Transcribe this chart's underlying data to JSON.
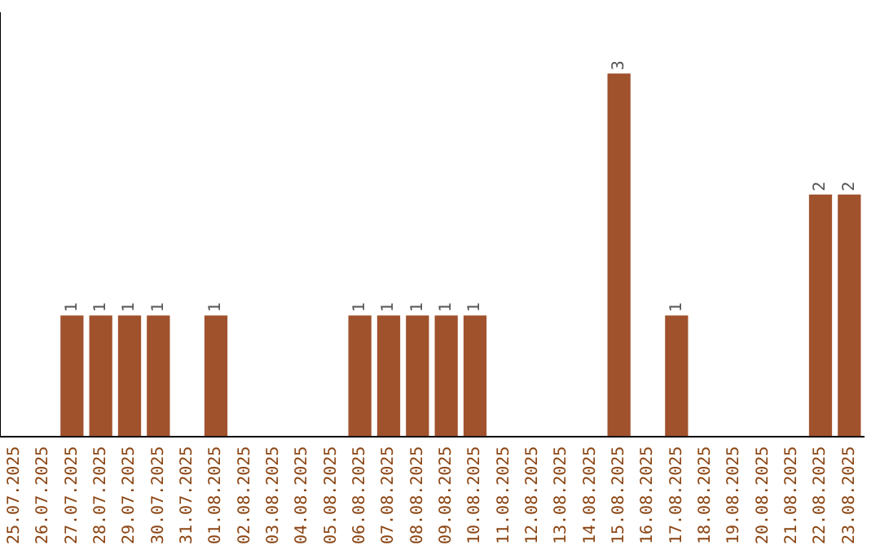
{
  "chart_data": {
    "type": "bar",
    "categories": [
      "25.07.2025",
      "26.07.2025",
      "27.07.2025",
      "28.07.2025",
      "29.07.2025",
      "30.07.2025",
      "31.07.2025",
      "01.08.2025",
      "02.08.2025",
      "03.08.2025",
      "04.08.2025",
      "05.08.2025",
      "06.08.2025",
      "07.08.2025",
      "08.08.2025",
      "09.08.2025",
      "10.08.2025",
      "11.08.2025",
      "12.08.2025",
      "13.08.2025",
      "14.08.2025",
      "15.08.2025",
      "16.08.2025",
      "17.08.2025",
      "18.08.2025",
      "19.08.2025",
      "20.08.2025",
      "21.08.2025",
      "22.08.2025",
      "23.08.2025"
    ],
    "values": [
      0,
      0,
      1,
      1,
      1,
      1,
      0,
      1,
      0,
      0,
      0,
      0,
      1,
      1,
      1,
      1,
      1,
      0,
      0,
      0,
      0,
      3,
      0,
      1,
      0,
      0,
      0,
      0,
      2,
      2
    ],
    "value_labels": [
      null,
      null,
      "1",
      "1",
      "1",
      "1",
      null,
      "1",
      null,
      null,
      null,
      null,
      "1",
      "1",
      "1",
      "1",
      "1",
      null,
      null,
      null,
      null,
      "3",
      null,
      "1",
      null,
      null,
      null,
      null,
      "2",
      "2"
    ],
    "color": "#a0522d",
    "grid": false,
    "legend": false
  }
}
